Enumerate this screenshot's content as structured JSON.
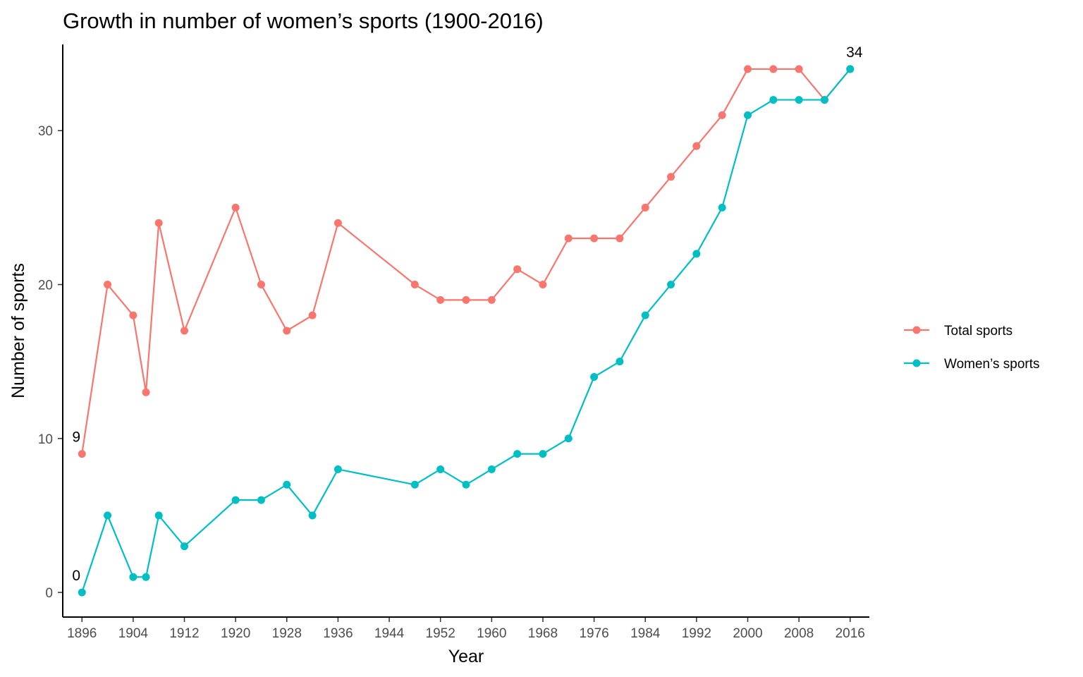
{
  "chart_data": {
    "type": "line",
    "title": "Growth in number of women’s sports (1900-2016)",
    "xlabel": "Year",
    "ylabel": "Number of sports",
    "xlim": [
      1893,
      2019
    ],
    "ylim": [
      -1.6,
      35.6
    ],
    "x_ticks": [
      1896,
      1904,
      1912,
      1920,
      1928,
      1936,
      1944,
      1952,
      1960,
      1968,
      1976,
      1984,
      1992,
      2000,
      2008,
      2016
    ],
    "y_ticks": [
      0,
      10,
      20,
      30
    ],
    "grid": false,
    "legend_position": "right",
    "x": [
      1896,
      1900,
      1904,
      1906,
      1908,
      1912,
      1920,
      1924,
      1928,
      1932,
      1936,
      1948,
      1952,
      1956,
      1960,
      1964,
      1968,
      1972,
      1976,
      1980,
      1984,
      1988,
      1992,
      1996,
      2000,
      2004,
      2008,
      2012,
      2016
    ],
    "series": [
      {
        "name": "Total sports",
        "color": "#F8766D",
        "values": [
          9,
          20,
          18,
          13,
          24,
          17,
          25,
          20,
          17,
          18,
          24,
          20,
          19,
          19,
          19,
          21,
          20,
          23,
          23,
          23,
          25,
          27,
          29,
          31,
          34,
          34,
          34,
          32,
          34
        ]
      },
      {
        "name": "Women’s sports",
        "color": "#00BFC4",
        "values": [
          0,
          5,
          1,
          1,
          5,
          3,
          6,
          6,
          7,
          5,
          8,
          7,
          8,
          7,
          8,
          9,
          9,
          10,
          14,
          15,
          18,
          20,
          22,
          25,
          31,
          32,
          32,
          32,
          34
        ]
      }
    ],
    "annotations": [
      {
        "x": 1896,
        "y": 9,
        "text": "9"
      },
      {
        "x": 1896,
        "y": 0,
        "text": "0"
      },
      {
        "x": 2016,
        "y": 34,
        "text": "34"
      }
    ]
  }
}
